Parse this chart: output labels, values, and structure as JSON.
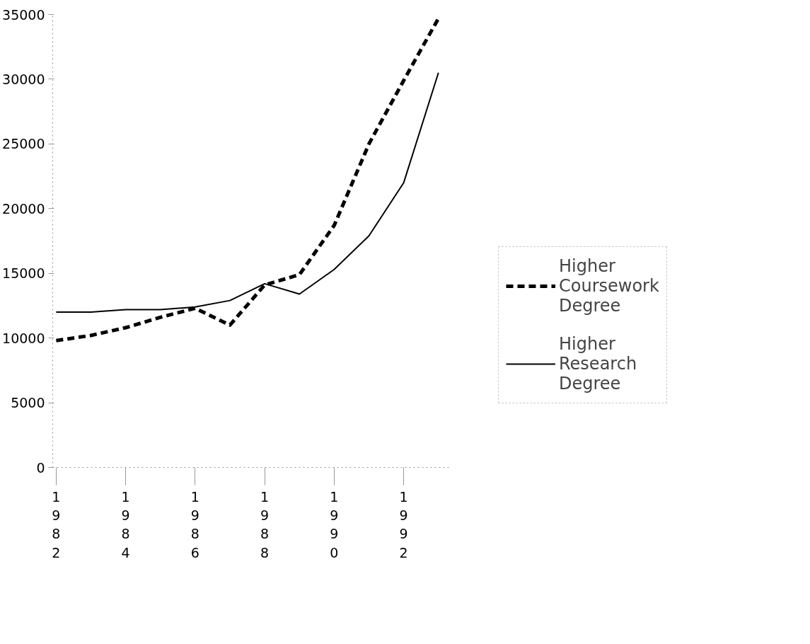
{
  "chart_data": {
    "type": "line",
    "x": [
      1982,
      1983,
      1984,
      1985,
      1986,
      1987,
      1988,
      1989,
      1990,
      1991,
      1992,
      1993
    ],
    "series": [
      {
        "name": "Higher Coursework Degree",
        "color": "#000000",
        "line_style": "dashed",
        "values": [
          9800,
          10200,
          10800,
          11600,
          12300,
          11000,
          14100,
          14900,
          18700,
          25000,
          29900,
          34700
        ]
      },
      {
        "name": "Higher Research Degree",
        "color": "#000000",
        "line_style": "solid",
        "values": [
          12000,
          12000,
          12200,
          12200,
          12400,
          12900,
          14200,
          13400,
          15300,
          17900,
          22000,
          30500
        ]
      }
    ],
    "xlim": [
      1981.9,
      1993.3
    ],
    "xticks": [
      1982,
      1984,
      1986,
      1988,
      1990,
      1992
    ],
    "ylim": [
      0,
      35000
    ],
    "yticks": [
      0,
      5000,
      10000,
      15000,
      20000,
      25000,
      30000,
      35000
    ],
    "grid": false,
    "legend": "right"
  }
}
